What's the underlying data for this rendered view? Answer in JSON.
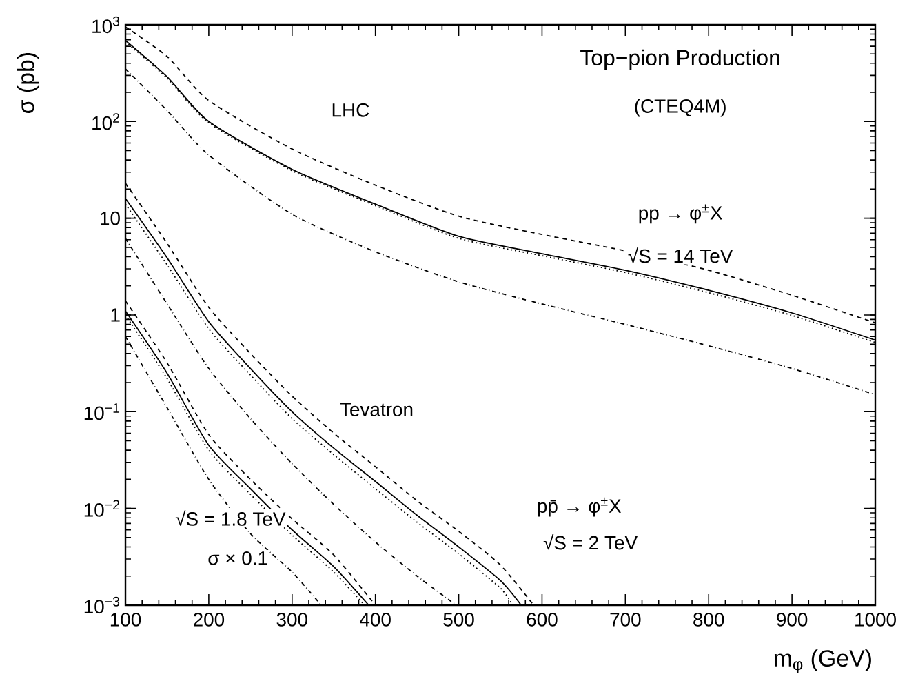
{
  "chart_data": {
    "type": "line",
    "title": "Top−pion Production",
    "subtitle": "(CTEQ4M)",
    "xlabel": "m$_{φ}$ (GeV)",
    "ylabel": "σ (pb)",
    "log": "y",
    "grid": false,
    "marker": "none",
    "xlim": [
      100,
      1000
    ],
    "ylim": [
      0.001,
      1000
    ],
    "xticks": [
      100,
      200,
      300,
      400,
      500,
      600,
      700,
      800,
      900,
      1000
    ],
    "yticks": [
      {
        "value": 0.001,
        "label": "10$^{−3}$"
      },
      {
        "value": 0.01,
        "label": "10$^{−2}$"
      },
      {
        "value": 0.1,
        "label": "10$^{−1}$"
      },
      1,
      10,
      {
        "value": 100,
        "label": "10$^{2}$"
      },
      {
        "value": 1000,
        "label": "10$^{3}$"
      }
    ],
    "annotations": [
      "LHC",
      "pp → φ$^{±}$X",
      "√S = 14 TeV",
      "Tevatron",
      "pp̄ → φ$^{±}$X",
      "√S = 2 TeV",
      "√S = 1.8 TeV",
      "σ × 0.1"
    ],
    "series": [
      {
        "color": "#000000",
        "line_style": "dashed",
        "x": [
          100,
          150,
          200,
          300,
          400,
          500,
          600,
          700,
          800,
          900,
          1000
        ],
        "values": [
          950,
          470,
          165,
          52,
          22,
          10.5,
          6.8,
          4.6,
          2.9,
          1.6,
          0.83
        ]
      },
      {
        "color": "#000000",
        "line_style": "solid",
        "x": [
          100,
          150,
          200,
          300,
          400,
          500,
          600,
          700,
          800,
          900,
          1000
        ],
        "values": [
          690,
          290,
          100,
          32,
          14,
          6.5,
          4.3,
          2.9,
          1.8,
          1.05,
          0.55
        ]
      },
      {
        "color": "#000000",
        "line_style": "dotted",
        "x": [
          100,
          150,
          200,
          300,
          400,
          500,
          600,
          700,
          800,
          900,
          1000
        ],
        "values": [
          670,
          280,
          97,
          31,
          13.5,
          6.2,
          4.1,
          2.75,
          1.7,
          0.99,
          0.52
        ]
      },
      {
        "color": "#000000",
        "line_style": "dashdot",
        "x": [
          100,
          150,
          200,
          300,
          400,
          500,
          600,
          700,
          800,
          900,
          1000
        ],
        "values": [
          350,
          130,
          45,
          11,
          4.5,
          2.2,
          1.3,
          0.8,
          0.48,
          0.28,
          0.15
        ]
      },
      {
        "color": "#000000",
        "line_style": "dashed",
        "x": [
          100,
          150,
          200,
          250,
          300,
          350,
          400,
          450,
          500,
          550,
          590
        ],
        "values": [
          23,
          5.5,
          1.2,
          0.4,
          0.145,
          0.06,
          0.027,
          0.012,
          0.0058,
          0.0026,
          0.001
        ]
      },
      {
        "color": "#000000",
        "line_style": "solid",
        "x": [
          100,
          150,
          200,
          250,
          300,
          350,
          400,
          450,
          500,
          550,
          575
        ],
        "values": [
          16,
          3.9,
          0.85,
          0.28,
          0.1,
          0.042,
          0.019,
          0.0085,
          0.004,
          0.0018,
          0.001
        ]
      },
      {
        "color": "#000000",
        "line_style": "dotted",
        "x": [
          100,
          150,
          200,
          250,
          300,
          350,
          400,
          450,
          500,
          550,
          565
        ],
        "values": [
          14,
          3.3,
          0.72,
          0.24,
          0.085,
          0.036,
          0.016,
          0.0072,
          0.0034,
          0.0015,
          0.001
        ]
      },
      {
        "color": "#000000",
        "line_style": "dashdot",
        "x": [
          100,
          150,
          200,
          250,
          300,
          350,
          400,
          450,
          497
        ],
        "values": [
          6.2,
          1.3,
          0.28,
          0.085,
          0.029,
          0.011,
          0.0045,
          0.002,
          0.001
        ]
      },
      {
        "color": "#000000",
        "line_style": "dashed",
        "x": [
          100,
          150,
          200,
          250,
          300,
          350,
          400
        ],
        "values": [
          1.4,
          0.32,
          0.058,
          0.02,
          0.0078,
          0.0033,
          0.001
        ]
      },
      {
        "color": "#000000",
        "line_style": "solid",
        "x": [
          100,
          150,
          200,
          250,
          300,
          350,
          392
        ],
        "values": [
          1.1,
          0.25,
          0.045,
          0.016,
          0.006,
          0.0025,
          0.001
        ]
      },
      {
        "color": "#000000",
        "line_style": "dotted",
        "x": [
          100,
          150,
          200,
          250,
          300,
          350,
          387
        ],
        "values": [
          1.0,
          0.22,
          0.04,
          0.014,
          0.0053,
          0.0022,
          0.001
        ]
      },
      {
        "color": "#000000",
        "line_style": "dashdot",
        "x": [
          100,
          150,
          200,
          250,
          300,
          335
        ],
        "values": [
          0.6,
          0.11,
          0.02,
          0.0055,
          0.0022,
          0.001
        ]
      }
    ]
  }
}
